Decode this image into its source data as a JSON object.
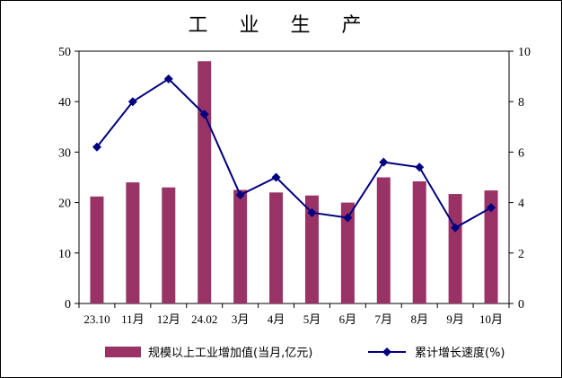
{
  "chart_data": {
    "type": "bar+line",
    "title": "工 业 生 产",
    "categories": [
      "23.10",
      "11月",
      "12月",
      "24.02",
      "3月",
      "4月",
      "5月",
      "6月",
      "7月",
      "8月",
      "9月",
      "10月"
    ],
    "series": [
      {
        "name": "规模以上工业增加值(当月,亿元)",
        "type": "bar",
        "axis": "left",
        "color": "#993366",
        "values": [
          21.2,
          24.0,
          23.0,
          48.0,
          22.5,
          22.0,
          21.4,
          20.0,
          25.0,
          24.2,
          21.7,
          22.4
        ]
      },
      {
        "name": "累计增长速度(%)",
        "type": "line",
        "axis": "right",
        "color": "#000080",
        "marker": "diamond",
        "values": [
          6.2,
          8.0,
          8.9,
          7.5,
          4.3,
          5.0,
          3.6,
          3.4,
          5.6,
          5.4,
          3.0,
          3.8
        ]
      }
    ],
    "y_left": {
      "min": 0,
      "max": 50,
      "ticks": [
        0,
        10,
        20,
        30,
        40,
        50
      ]
    },
    "y_right": {
      "min": 0,
      "max": 10,
      "ticks": [
        0,
        2,
        4,
        6,
        8,
        10
      ]
    },
    "grid": false,
    "legend_position": "bottom"
  }
}
